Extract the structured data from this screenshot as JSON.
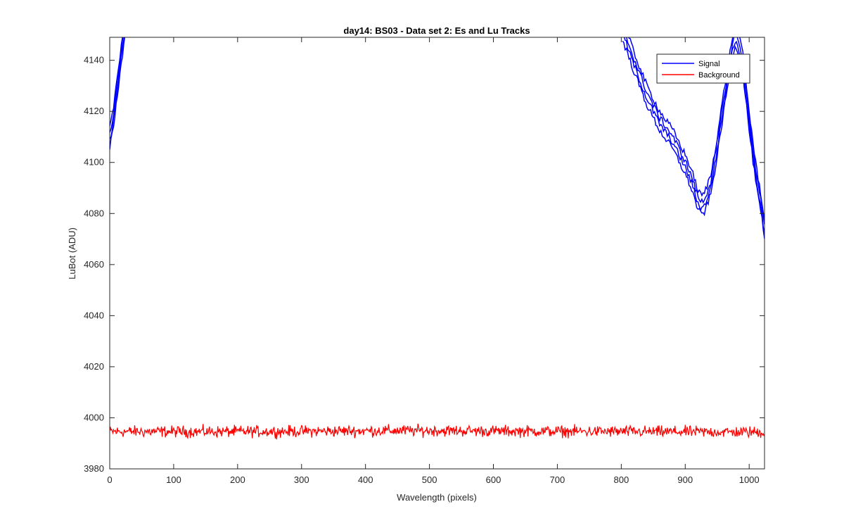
{
  "chart_data": {
    "type": "line",
    "title": "day14: BS03 - Data set 2: Es and Lu Tracks",
    "xlabel": "Wavelength (pixels)",
    "ylabel": "LuBot (ADU)",
    "xlim": [
      0,
      1024
    ],
    "ylim": [
      3980,
      4149
    ],
    "xticks": [
      0,
      100,
      200,
      300,
      400,
      500,
      600,
      700,
      800,
      900,
      1000
    ],
    "yticks": [
      3980,
      4000,
      4020,
      4040,
      4060,
      4080,
      4100,
      4120,
      4140
    ],
    "grid": false,
    "legend_position": "top-right",
    "colors": {
      "signal": "#0000ff",
      "background": "#ff0000",
      "axis": "#262626"
    },
    "legend": [
      "Signal",
      "Background"
    ],
    "series": [
      {
        "name": "Signal",
        "color": "#0000ff",
        "note_traces": 4,
        "x": [
          0,
          5,
          10,
          15,
          20,
          25,
          30,
          800,
          820,
          840,
          860,
          880,
          900,
          910,
          920,
          925,
          930,
          940,
          950,
          960,
          970,
          975,
          980,
          990,
          1000,
          1010,
          1020,
          1024
        ],
        "y": [
          4108,
          4115,
          4125,
          4135,
          4145,
          4155,
          4165,
          4152,
          4138,
          4125,
          4115,
          4108,
          4098,
          4092,
          4084,
          4082,
          4083,
          4090,
          4105,
          4122,
          4138,
          4146,
          4148,
          4138,
          4115,
          4095,
          4080,
          4072
        ]
      },
      {
        "name": "Background",
        "color": "#ff0000",
        "x": [
          0,
          100,
          200,
          300,
          400,
          500,
          600,
          700,
          800,
          900,
          1000,
          1024
        ],
        "y": [
          3994.6,
          3994.6,
          3994.6,
          3994.7,
          3994.9,
          3995.0,
          3994.8,
          3994.7,
          3994.6,
          3994.5,
          3994.4,
          3994.3
        ]
      }
    ]
  }
}
